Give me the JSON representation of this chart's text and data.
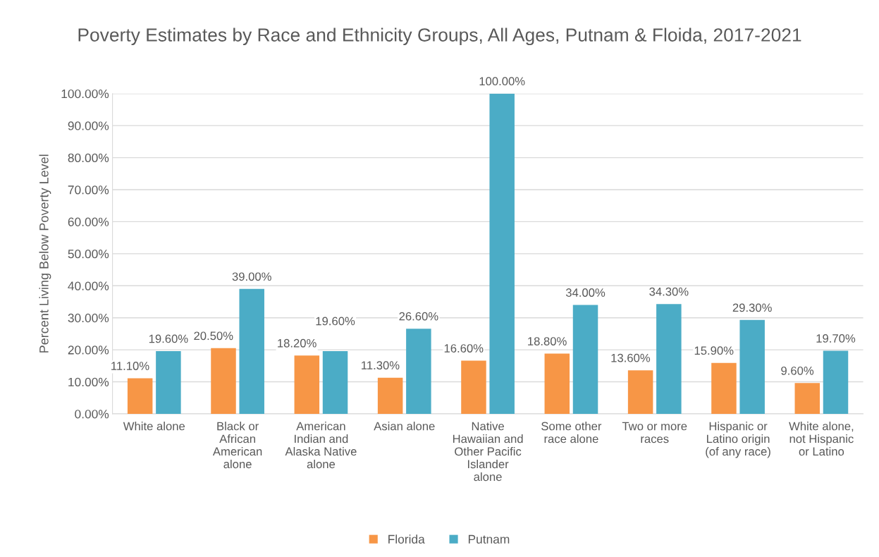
{
  "chart_data": {
    "type": "bar",
    "title": "Poverty Estimates by Race and Ethnicity Groups, All Ages, Putnam & Floida, 2017-2021",
    "ylabel": "Percent Living Below Poverty Level",
    "categories": [
      "White alone",
      "Black or African American alone",
      "American Indian and Alaska Native alone",
      "Asian alone",
      "Native Hawaiian and Other Pacific Islander alone",
      "Some other race alone",
      "Two or more races",
      "Hispanic or Latino origin (of any race)",
      "White alone, not Hispanic or Latino"
    ],
    "series": [
      {
        "name": "Florida",
        "color": "#f79646",
        "values": [
          11.1,
          20.5,
          18.2,
          11.3,
          16.6,
          18.8,
          13.6,
          15.9,
          9.6
        ],
        "value_labels": [
          "11.10%",
          "20.50%",
          "18.20%",
          "11.30%",
          "16.60%",
          "18.80%",
          "13.60%",
          "15.90%",
          "9.60%"
        ]
      },
      {
        "name": "Putnam",
        "color": "#4bacc6",
        "values": [
          19.6,
          39.0,
          19.6,
          26.6,
          100.0,
          34.0,
          34.3,
          29.3,
          19.7
        ],
        "value_labels": [
          "19.60%",
          "39.00%",
          "19.60%",
          "26.60%",
          "100.00%",
          "34.00%",
          "34.30%",
          "29.30%",
          "19.70%"
        ]
      }
    ],
    "ylim": [
      0,
      100
    ],
    "yticks": [
      {
        "value": 0,
        "label": "0.00%"
      },
      {
        "value": 10,
        "label": "10.00%"
      },
      {
        "value": 20,
        "label": "20.00%"
      },
      {
        "value": 30,
        "label": "30.00%"
      },
      {
        "value": 40,
        "label": "40.00%"
      },
      {
        "value": 50,
        "label": "50.00%"
      },
      {
        "value": 60,
        "label": "60.00%"
      },
      {
        "value": 70,
        "label": "70.00%"
      },
      {
        "value": 80,
        "label": "80.00%"
      },
      {
        "value": 90,
        "label": "90.00%"
      },
      {
        "value": 100,
        "label": "100.00%"
      }
    ],
    "grid": "y",
    "legend": "bottom"
  }
}
